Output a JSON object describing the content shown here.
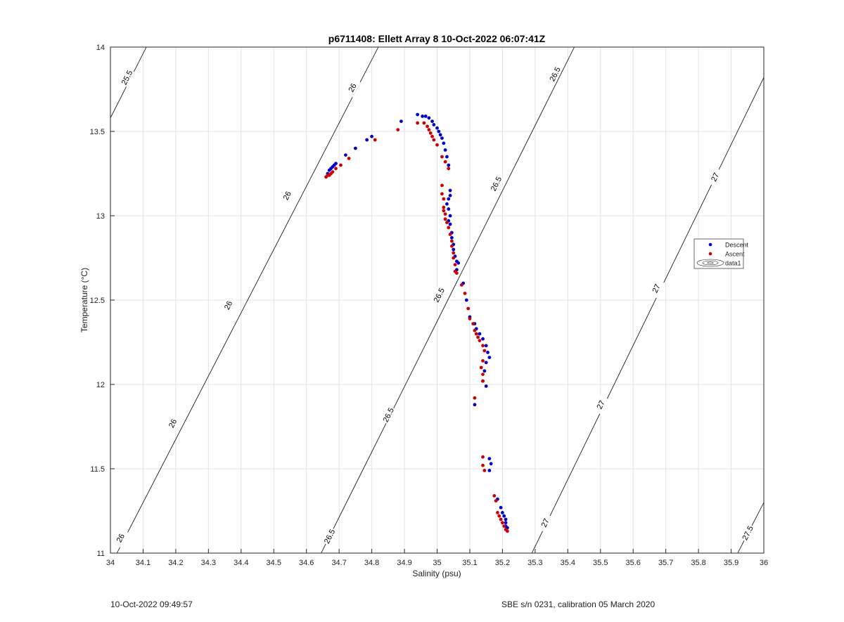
{
  "chart_data": {
    "type": "scatter",
    "title": "p6711408: Ellett Array 8 10-Oct-2022 06:07:41Z",
    "xlabel": "Salinity (psu)",
    "ylabel": "Temperature (°C)",
    "xlim": [
      34,
      36
    ],
    "ylim": [
      11,
      14
    ],
    "xticks": [
      34,
      34.1,
      34.2,
      34.3,
      34.4,
      34.5,
      34.6,
      34.7,
      34.8,
      34.9,
      35,
      35.1,
      35.2,
      35.3,
      35.4,
      35.5,
      35.6,
      35.7,
      35.8,
      35.9,
      36
    ],
    "xtick_labels": [
      "34",
      "34.1",
      "34.2",
      "34.3",
      "34.4",
      "34.5",
      "34.6",
      "34.7",
      "34.8",
      "34.9",
      "35",
      "35.1",
      "35.2",
      "35.3",
      "35.4",
      "35.5",
      "35.6",
      "35.7",
      "35.8",
      "35.9",
      "36"
    ],
    "yticks": [
      11,
      11.5,
      12,
      12.5,
      13,
      13.5,
      14
    ],
    "ytick_labels": [
      "11",
      "11.5",
      "12",
      "12.5",
      "13",
      "13.5",
      "14"
    ],
    "grid": true,
    "legend_position": "right",
    "density_contours": [
      {
        "label": "25.5",
        "points": [
          [
            34.0,
            13.58
          ],
          [
            34.11,
            14.0
          ]
        ],
        "labels_at": [
          [
            34.05,
            13.82
          ]
        ]
      },
      {
        "label": "26",
        "points": [
          [
            34.02,
            11.0
          ],
          [
            34.82,
            14.0
          ]
        ],
        "labels_at": [
          [
            34.03,
            11.09
          ],
          [
            34.19,
            11.77
          ],
          [
            34.36,
            12.47
          ],
          [
            34.54,
            13.12
          ],
          [
            34.74,
            13.76
          ]
        ]
      },
      {
        "label": "26.5",
        "points": [
          [
            34.645,
            11.0
          ],
          [
            35.42,
            14.0
          ]
        ],
        "labels_at": [
          [
            34.67,
            11.1
          ],
          [
            34.85,
            11.82
          ],
          [
            35.005,
            12.53
          ],
          [
            35.18,
            13.19
          ],
          [
            35.36,
            13.84
          ]
        ]
      },
      {
        "label": "27",
        "points": [
          [
            35.29,
            11.0
          ],
          [
            36.0,
            13.82
          ]
        ],
        "labels_at": [
          [
            35.33,
            11.18
          ],
          [
            35.5,
            11.88
          ],
          [
            35.67,
            12.57
          ],
          [
            35.85,
            13.23
          ]
        ]
      },
      {
        "label": "27.5",
        "points": [
          [
            35.92,
            11.0
          ],
          [
            36.0,
            11.3
          ]
        ],
        "labels_at": [
          [
            35.95,
            11.12
          ]
        ]
      }
    ],
    "series": [
      {
        "name": "Descent",
        "color": "#0000cc",
        "points": [
          [
            34.665,
            13.25
          ],
          [
            34.67,
            13.27
          ],
          [
            34.675,
            13.28
          ],
          [
            34.68,
            13.29
          ],
          [
            34.685,
            13.3
          ],
          [
            34.69,
            13.31
          ],
          [
            34.72,
            13.36
          ],
          [
            34.75,
            13.4
          ],
          [
            34.785,
            13.45
          ],
          [
            34.8,
            13.47
          ],
          [
            34.89,
            13.56
          ],
          [
            34.94,
            13.6
          ],
          [
            34.955,
            13.59
          ],
          [
            34.965,
            13.59
          ],
          [
            34.975,
            13.58
          ],
          [
            34.985,
            13.56
          ],
          [
            34.99,
            13.54
          ],
          [
            35.0,
            13.52
          ],
          [
            35.005,
            13.5
          ],
          [
            35.01,
            13.48
          ],
          [
            35.015,
            13.46
          ],
          [
            35.02,
            13.43
          ],
          [
            35.025,
            13.39
          ],
          [
            35.03,
            13.35
          ],
          [
            35.035,
            13.3
          ],
          [
            35.04,
            13.15
          ],
          [
            35.04,
            13.12
          ],
          [
            35.035,
            13.1
          ],
          [
            35.03,
            13.07
          ],
          [
            35.035,
            13.04
          ],
          [
            35.04,
            13.0
          ],
          [
            35.035,
            12.97
          ],
          [
            35.04,
            12.95
          ],
          [
            35.045,
            12.9
          ],
          [
            35.045,
            12.87
          ],
          [
            35.05,
            12.83
          ],
          [
            35.05,
            12.8
          ],
          [
            35.055,
            12.76
          ],
          [
            35.06,
            12.73
          ],
          [
            35.065,
            12.72
          ],
          [
            35.06,
            12.68
          ],
          [
            35.08,
            12.6
          ],
          [
            35.09,
            12.5
          ],
          [
            35.1,
            12.4
          ],
          [
            35.115,
            12.36
          ],
          [
            35.12,
            12.33
          ],
          [
            35.13,
            12.3
          ],
          [
            35.14,
            12.27
          ],
          [
            35.15,
            12.23
          ],
          [
            35.155,
            12.19
          ],
          [
            35.16,
            12.16
          ],
          [
            35.15,
            12.13
          ],
          [
            35.145,
            12.08
          ],
          [
            35.14,
            12.02
          ],
          [
            35.15,
            11.99
          ],
          [
            35.115,
            11.88
          ],
          [
            35.16,
            11.56
          ],
          [
            35.165,
            11.53
          ],
          [
            35.16,
            11.49
          ],
          [
            35.185,
            11.32
          ],
          [
            35.195,
            11.27
          ],
          [
            35.2,
            11.24
          ],
          [
            35.205,
            11.22
          ],
          [
            35.21,
            11.2
          ],
          [
            35.21,
            11.18
          ],
          [
            35.21,
            11.16
          ],
          [
            35.215,
            11.15
          ]
        ]
      },
      {
        "name": "Ascent",
        "color": "#cc0000",
        "points": [
          [
            34.66,
            13.23
          ],
          [
            34.665,
            13.24
          ],
          [
            34.67,
            13.24
          ],
          [
            34.675,
            13.25
          ],
          [
            34.68,
            13.26
          ],
          [
            34.69,
            13.28
          ],
          [
            34.705,
            13.3
          ],
          [
            34.73,
            13.34
          ],
          [
            34.81,
            13.45
          ],
          [
            34.88,
            13.51
          ],
          [
            34.94,
            13.55
          ],
          [
            34.96,
            13.55
          ],
          [
            34.97,
            13.53
          ],
          [
            34.975,
            13.51
          ],
          [
            34.98,
            13.49
          ],
          [
            34.985,
            13.47
          ],
          [
            34.99,
            13.45
          ],
          [
            35.0,
            13.42
          ],
          [
            35.015,
            13.35
          ],
          [
            35.025,
            13.32
          ],
          [
            35.035,
            13.28
          ],
          [
            35.015,
            13.18
          ],
          [
            35.015,
            13.13
          ],
          [
            35.02,
            13.1
          ],
          [
            35.02,
            13.05
          ],
          [
            35.02,
            13.03
          ],
          [
            35.025,
            13.01
          ],
          [
            35.025,
            12.98
          ],
          [
            35.03,
            12.96
          ],
          [
            35.035,
            12.93
          ],
          [
            35.04,
            12.89
          ],
          [
            35.045,
            12.85
          ],
          [
            35.045,
            12.82
          ],
          [
            35.05,
            12.78
          ],
          [
            35.05,
            12.75
          ],
          [
            35.055,
            12.71
          ],
          [
            35.055,
            12.67
          ],
          [
            35.06,
            12.66
          ],
          [
            35.075,
            12.59
          ],
          [
            35.085,
            12.54
          ],
          [
            35.095,
            12.45
          ],
          [
            35.1,
            12.39
          ],
          [
            35.11,
            12.36
          ],
          [
            35.115,
            12.32
          ],
          [
            35.12,
            12.3
          ],
          [
            35.125,
            12.28
          ],
          [
            35.13,
            12.26
          ],
          [
            35.14,
            12.23
          ],
          [
            35.145,
            12.2
          ],
          [
            35.14,
            12.14
          ],
          [
            35.135,
            12.1
          ],
          [
            35.14,
            12.06
          ],
          [
            35.14,
            12.02
          ],
          [
            35.115,
            11.92
          ],
          [
            35.14,
            11.57
          ],
          [
            35.14,
            11.52
          ],
          [
            35.145,
            11.49
          ],
          [
            35.175,
            11.34
          ],
          [
            35.18,
            11.31
          ],
          [
            35.185,
            11.24
          ],
          [
            35.19,
            11.22
          ],
          [
            35.195,
            11.2
          ],
          [
            35.2,
            11.18
          ],
          [
            35.205,
            11.16
          ],
          [
            35.21,
            11.14
          ],
          [
            35.215,
            11.13
          ]
        ]
      }
    ],
    "legend": [
      {
        "label": "Descent",
        "marker": "dot",
        "color": "#0000cc"
      },
      {
        "label": "Ascent",
        "marker": "dot",
        "color": "#cc0000"
      },
      {
        "label": "data1",
        "marker": "contour",
        "color": "#000000"
      }
    ]
  },
  "footer": {
    "left": "10-Oct-2022 09:49:57",
    "right": "SBE s/n 0231, calibration 05 March 2020"
  }
}
